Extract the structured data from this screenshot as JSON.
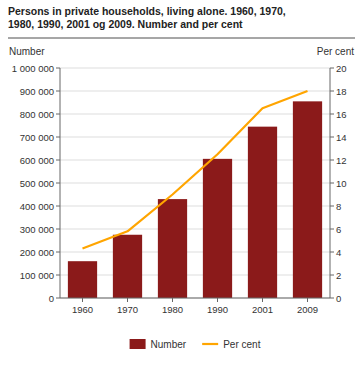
{
  "chart_data": {
    "type": "bar",
    "title": "Persons in private households, living alone. 1960, 1970,\n1980, 1990, 2001 og 2009. Number and per cent",
    "y_label": "Number",
    "y2_label": "Per cent",
    "categories": [
      "1960",
      "1970",
      "1980",
      "1990",
      "2001",
      "2009"
    ],
    "series": [
      {
        "name": "Number",
        "type": "bar",
        "color": "#8B1A1A",
        "values": [
          160000,
          275000,
          430000,
          605000,
          745000,
          855000
        ]
      },
      {
        "name": "Per cent",
        "type": "line",
        "axis": "y2",
        "color": "#FFA500",
        "values": [
          4.3,
          5.8,
          9.0,
          12.5,
          16.5,
          18.0
        ]
      }
    ],
    "ylim": [
      0,
      1000000
    ],
    "yticks": [
      0,
      {
        "value": 100000,
        "label": "100 000"
      },
      {
        "value": 200000,
        "label": "200 000"
      },
      {
        "value": 300000,
        "label": "300 000"
      },
      {
        "value": 400000,
        "label": "400 000"
      },
      {
        "value": 500000,
        "label": "500 000"
      },
      {
        "value": 600000,
        "label": "600 000"
      },
      {
        "value": 700000,
        "label": "700 000"
      },
      {
        "value": 800000,
        "label": "800 000"
      },
      {
        "value": 900000,
        "label": "900 000"
      },
      {
        "value": 1000000,
        "label": "1 000 000"
      }
    ],
    "y2lim": [
      0,
      20
    ],
    "y2ticks": [
      0,
      2,
      4,
      6,
      8,
      10,
      12,
      14,
      16,
      18,
      20
    ],
    "grid": true,
    "legend": "bottom"
  }
}
